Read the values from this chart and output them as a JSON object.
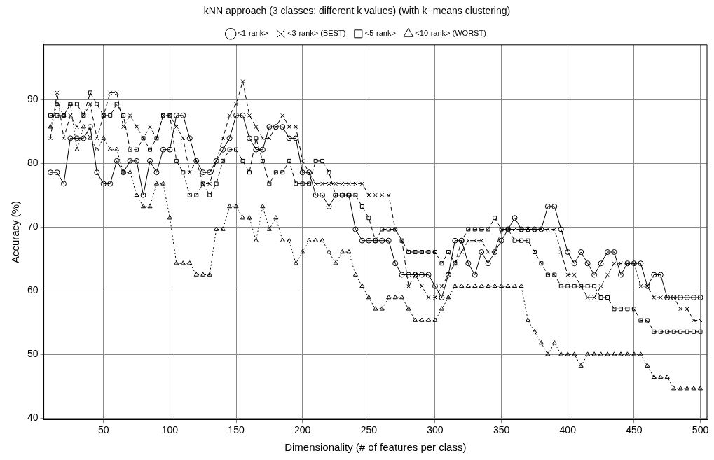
{
  "chart_data": {
    "type": "line",
    "title": "kNN approach (3 classes; different k values) (with k−means clustering)",
    "xlabel": "Dimensionality (# of features per class)",
    "ylabel": "Accuracy (%)",
    "x": [
      10,
      15,
      20,
      25,
      30,
      35,
      40,
      45,
      50,
      55,
      60,
      65,
      70,
      75,
      80,
      85,
      90,
      95,
      100,
      105,
      110,
      115,
      120,
      125,
      130,
      135,
      140,
      145,
      150,
      155,
      160,
      165,
      170,
      175,
      180,
      185,
      190,
      195,
      200,
      205,
      210,
      215,
      220,
      225,
      230,
      235,
      240,
      245,
      250,
      255,
      260,
      265,
      270,
      275,
      280,
      285,
      290,
      295,
      300,
      305,
      310,
      315,
      320,
      325,
      330,
      335,
      340,
      345,
      350,
      355,
      360,
      365,
      370,
      375,
      380,
      385,
      390,
      395,
      400,
      405,
      410,
      415,
      420,
      425,
      430,
      435,
      440,
      445,
      450,
      455,
      460,
      465,
      470,
      475,
      480,
      485,
      490,
      495,
      500
    ],
    "series": [
      {
        "name": "<1-rank>",
        "color": "#000000",
        "marker": "circle",
        "line_style": "solid",
        "values": [
          78.57,
          78.57,
          76.79,
          83.93,
          83.93,
          83.93,
          85.71,
          78.57,
          76.79,
          76.79,
          80.36,
          78.57,
          80.36,
          80.36,
          75,
          80.36,
          78.57,
          82.14,
          82.14,
          87.5,
          87.5,
          83.93,
          80.36,
          78.57,
          78.57,
          80.36,
          82.14,
          83.93,
          87.5,
          87.5,
          83.93,
          82.14,
          82.14,
          85.71,
          85.71,
          85.71,
          83.93,
          83.93,
          78.57,
          78.57,
          75,
          75,
          73.21,
          75,
          75,
          75,
          69.64,
          67.86,
          67.86,
          67.86,
          67.86,
          67.86,
          64.29,
          62.5,
          62.5,
          62.5,
          62.5,
          62.5,
          60.71,
          58.93,
          62.5,
          67.86,
          67.86,
          64.29,
          62.5,
          66.07,
          64.29,
          66.07,
          67.86,
          69.64,
          71.43,
          69.64,
          69.64,
          69.64,
          69.64,
          73.21,
          73.21,
          69.64,
          66.07,
          64.29,
          66.07,
          64.29,
          62.5,
          64.29,
          66.07,
          66.07,
          62.5,
          64.29,
          64.29,
          64.29,
          60.71,
          62.5,
          62.5,
          58.93,
          58.93,
          58.93,
          58.93,
          58.93,
          58.93
        ]
      },
      {
        "name": "<3-rank> (BEST)",
        "color": "#000000",
        "marker": "cross",
        "line_style": "dashed",
        "values": [
          83.93,
          91.07,
          83.93,
          87.5,
          85.71,
          87.5,
          89.29,
          83.93,
          87.5,
          91.07,
          91.07,
          85.71,
          87.5,
          85.71,
          83.93,
          85.71,
          83.93,
          87.5,
          87.5,
          85.71,
          83.93,
          78.57,
          80.36,
          76.79,
          76.79,
          80.36,
          83.93,
          87.5,
          89.29,
          92.86,
          87.5,
          85.71,
          83.93,
          83.93,
          85.71,
          87.5,
          85.71,
          85.71,
          80.36,
          78.57,
          76.79,
          76.79,
          76.79,
          76.79,
          76.79,
          76.79,
          76.79,
          76.79,
          75,
          75,
          75,
          75,
          69.64,
          67.86,
          60.71,
          62.5,
          60.71,
          58.93,
          58.93,
          60.71,
          62.5,
          64.29,
          66.07,
          67.86,
          67.86,
          67.86,
          66.07,
          66.07,
          69.64,
          69.64,
          69.64,
          69.64,
          69.64,
          69.64,
          69.64,
          69.64,
          69.64,
          66.07,
          62.5,
          62.5,
          60.71,
          58.93,
          58.93,
          60.71,
          62.5,
          64.29,
          64.29,
          64.29,
          64.29,
          60.71,
          60.71,
          58.93,
          58.93,
          58.93,
          58.93,
          57.14,
          57.14,
          55.36,
          55.36
        ]
      },
      {
        "name": "<5-rank>",
        "color": "#000000",
        "marker": "square",
        "line_style": "dashed",
        "values": [
          87.5,
          87.5,
          87.5,
          89.29,
          89.29,
          87.5,
          91.07,
          89.29,
          87.5,
          87.5,
          89.29,
          87.5,
          82.14,
          82.14,
          83.93,
          82.14,
          83.93,
          87.5,
          87.5,
          80.36,
          78.57,
          75,
          75,
          76.79,
          75,
          76.79,
          80.36,
          82.14,
          82.14,
          80.36,
          78.57,
          83.93,
          80.36,
          76.79,
          78.57,
          78.57,
          80.36,
          76.79,
          76.79,
          76.79,
          80.36,
          80.36,
          78.57,
          75,
          75,
          75,
          75,
          73.21,
          71.43,
          67.86,
          69.64,
          69.64,
          69.64,
          67.86,
          66.07,
          66.07,
          66.07,
          66.07,
          66.07,
          64.29,
          66.07,
          64.29,
          67.86,
          69.64,
          69.64,
          69.64,
          69.64,
          71.43,
          69.64,
          69.64,
          67.86,
          67.86,
          67.86,
          66.07,
          64.29,
          62.5,
          62.5,
          60.71,
          60.71,
          60.71,
          60.71,
          60.71,
          60.71,
          58.93,
          58.93,
          57.14,
          57.14,
          57.14,
          57.14,
          55.36,
          55.36,
          53.57,
          53.57,
          53.57,
          53.57,
          53.57,
          53.57,
          53.57,
          53.57
        ]
      },
      {
        "name": "<10-rank> (WORST)",
        "color": "#000000",
        "marker": "triangle",
        "line_style": "dotted",
        "values": [
          85.71,
          89.29,
          87.5,
          89.29,
          82.14,
          85.71,
          83.93,
          82.14,
          83.93,
          82.14,
          82.14,
          78.57,
          78.57,
          75,
          73.21,
          73.21,
          76.79,
          76.79,
          71.43,
          64.29,
          64.29,
          64.29,
          62.5,
          62.5,
          62.5,
          69.64,
          69.64,
          73.21,
          73.21,
          71.43,
          71.43,
          67.86,
          73.21,
          69.64,
          71.43,
          67.86,
          67.86,
          64.29,
          66.07,
          67.86,
          67.86,
          67.86,
          66.07,
          64.29,
          66.07,
          66.07,
          62.5,
          60.71,
          58.93,
          57.14,
          57.14,
          58.93,
          58.93,
          58.93,
          57.14,
          55.36,
          55.36,
          55.36,
          55.36,
          57.14,
          58.93,
          60.71,
          60.71,
          60.71,
          60.71,
          60.71,
          60.71,
          60.71,
          60.71,
          60.71,
          60.71,
          60.71,
          55.36,
          53.57,
          51.79,
          50,
          51.79,
          50,
          50,
          50,
          48.21,
          50,
          50,
          50,
          50,
          50,
          50,
          50,
          50,
          50,
          48.21,
          46.43,
          46.43,
          46.43,
          44.64,
          44.64,
          44.64,
          44.64,
          44.64
        ]
      }
    ],
    "xlim": [
      5,
      505
    ],
    "xticks": [
      50,
      100,
      150,
      200,
      250,
      300,
      350,
      400,
      450,
      500
    ],
    "ylim": [
      39.8,
      98.6
    ],
    "yticks": [
      40,
      50,
      60,
      70,
      80,
      90
    ],
    "grid": true,
    "legend": "top"
  }
}
